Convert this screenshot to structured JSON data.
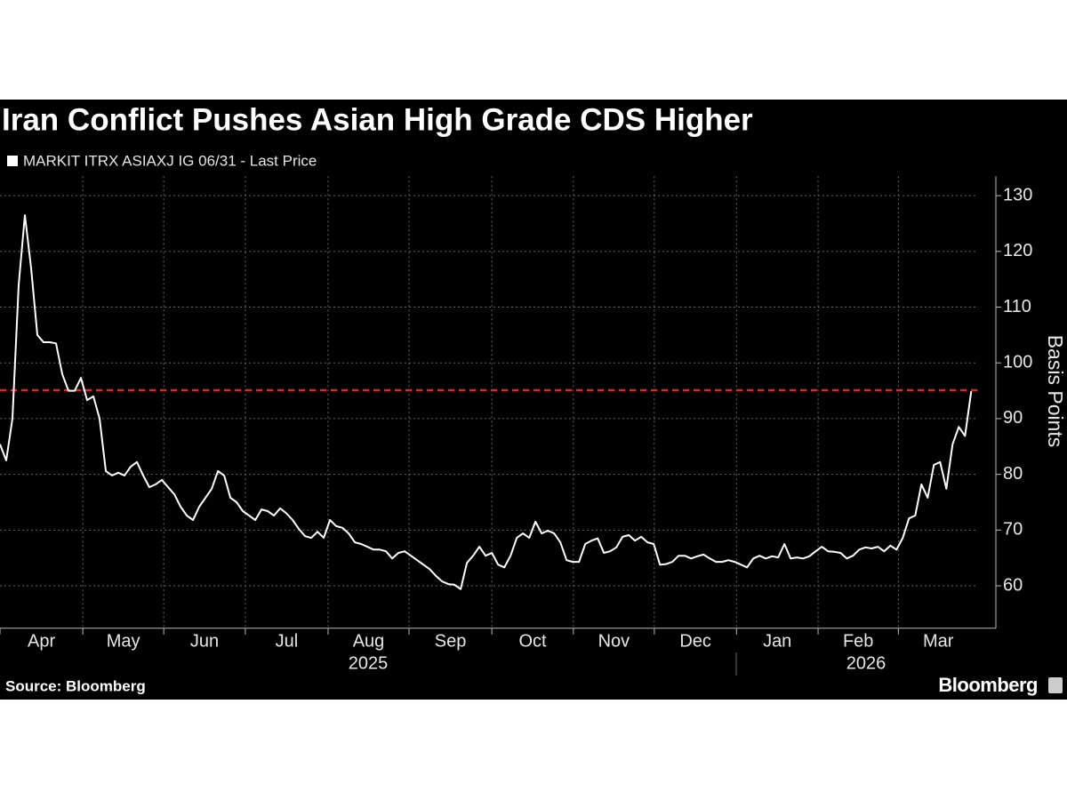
{
  "chart_data": {
    "type": "line",
    "title": "Iran Conflict Pushes Asian High Grade CDS Higher",
    "y_label": "Basis Points",
    "source": "Source: Bloomberg",
    "brand": "Bloomberg",
    "year_labels": [
      "2025",
      "2026"
    ],
    "series": [
      {
        "name": "MARKIT ITRX ASIAXJ IG 06/31 - Last Price",
        "color": "#ffffff",
        "values": [
          85.4,
          82.5,
          90,
          114,
          126.5,
          117,
          105,
          103.7,
          103.7,
          103.5,
          98,
          95,
          95,
          97.3,
          93.3,
          94,
          90,
          80.6,
          79.8,
          80.3,
          79.8,
          81.4,
          82.2,
          79.8,
          77.7,
          78.2,
          79,
          77.7,
          76.4,
          74.2,
          72.6,
          71.8,
          74.2,
          75.8,
          77.4,
          80.6,
          79.8,
          75.8,
          75,
          73.4,
          72.6,
          71.8,
          73.7,
          73.4,
          72.6,
          73.9,
          73,
          71.8,
          70.2,
          68.9,
          68.6,
          69.7,
          68.6,
          71.8,
          70.7,
          70.4,
          69.4,
          67.8,
          67.5,
          67,
          66.5,
          66.5,
          66.2,
          64.9,
          65.9,
          66.2,
          65.4,
          64.6,
          63.8,
          63,
          61.8,
          60.8,
          60.3,
          60.2,
          59.4,
          64.1,
          65.4,
          67,
          65.4,
          65.9,
          63.8,
          63.3,
          65.4,
          68.6,
          69.4,
          68.6,
          71.5,
          69.4,
          69.9,
          69.4,
          67.8,
          64.6,
          64.3,
          64.3,
          67.5,
          68.1,
          68.5,
          65.9,
          66.2,
          66.9,
          68.8,
          69.1,
          68.1,
          68.8,
          67.8,
          67.5,
          63.8,
          63.9,
          64.3,
          65.4,
          65.4,
          64.9,
          65.3,
          65.6,
          64.9,
          64.3,
          64.3,
          64.6,
          64.3,
          63.8,
          63.3,
          64.9,
          65.4,
          64.9,
          65.3,
          65.1,
          67.5,
          64.9,
          65.1,
          64.9,
          65.3,
          66.2,
          67,
          66.2,
          66.1,
          65.9,
          64.9,
          65.4,
          66.5,
          66.9,
          66.7,
          67,
          66.2,
          67.2,
          66.5,
          68.6,
          72.1,
          72.6,
          78.2,
          75.8,
          81.7,
          82.2,
          77.4,
          85.4,
          88.5,
          86.9,
          94.9
        ]
      }
    ],
    "reference_line": {
      "value": 95.1,
      "color": "#e8251f"
    },
    "xlim": [
      0,
      157.1
    ],
    "xticks": [
      {
        "value": 0,
        "label": "Apr"
      },
      {
        "value": 13.3,
        "label": "May"
      },
      {
        "value": 26.3,
        "label": "Jun"
      },
      {
        "value": 39.4,
        "label": "Jul"
      },
      {
        "value": 52.7,
        "label": "Aug"
      },
      {
        "value": 65.7,
        "label": "Sep"
      },
      {
        "value": 79,
        "label": "Oct"
      },
      {
        "value": 92.1,
        "label": "Nov"
      },
      {
        "value": 105.1,
        "label": "Dec"
      },
      {
        "value": 118.3,
        "label": "Jan"
      },
      {
        "value": 131.4,
        "label": "Feb"
      },
      {
        "value": 144.3,
        "label": "Mar"
      }
    ],
    "ylim": [
      52.7,
      133.5
    ],
    "yticks": [
      60,
      70,
      80,
      90,
      100,
      110,
      120,
      130
    ],
    "grid": true
  }
}
